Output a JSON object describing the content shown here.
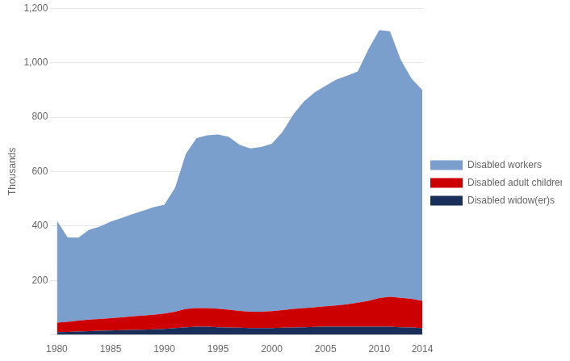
{
  "chart_data": {
    "type": "area",
    "stacked": true,
    "ylabel": "Thousands",
    "x": [
      1980,
      1981,
      1982,
      1983,
      1984,
      1985,
      1986,
      1987,
      1988,
      1989,
      1990,
      1991,
      1992,
      1993,
      1994,
      1995,
      1996,
      1997,
      1998,
      1999,
      2000,
      2001,
      2002,
      2003,
      2004,
      2005,
      2006,
      2007,
      2008,
      2009,
      2010,
      2011,
      2012,
      2013,
      2014
    ],
    "series": [
      {
        "name": "Disabled widow(er)s",
        "color": "#1a2e5a",
        "values": [
          10,
          11,
          12,
          14,
          15,
          16,
          17,
          18,
          19,
          20,
          22,
          25,
          28,
          30,
          30,
          28,
          27,
          26,
          25,
          25,
          25,
          26,
          27,
          28,
          29,
          30,
          30,
          30,
          30,
          30,
          30,
          30,
          28,
          27,
          25
        ]
      },
      {
        "name": "Disabled adult children",
        "color": "#cc0000",
        "values": [
          35,
          37,
          40,
          42,
          43,
          45,
          47,
          50,
          52,
          54,
          56,
          60,
          67,
          68,
          68,
          68,
          65,
          62,
          60,
          60,
          62,
          65,
          68,
          70,
          72,
          75,
          78,
          82,
          88,
          95,
          105,
          110,
          108,
          105,
          100
        ]
      },
      {
        "name": "Disabled workers",
        "color": "#7b9fcd",
        "values": [
          375,
          310,
          305,
          330,
          340,
          355,
          365,
          375,
          385,
          395,
          400,
          455,
          570,
          625,
          635,
          640,
          635,
          610,
          600,
          605,
          615,
          655,
          715,
          760,
          790,
          810,
          830,
          840,
          850,
          925,
          985,
          975,
          875,
          810,
          775
        ]
      }
    ],
    "xlim": [
      1980,
      2014
    ],
    "xticks": [
      1980,
      1985,
      1990,
      1995,
      2000,
      2005,
      2010,
      2014
    ],
    "ylim": [
      0,
      1200
    ],
    "yticks": [
      {
        "value": 0,
        "label": ""
      },
      200,
      400,
      600,
      800,
      {
        "value": 1000,
        "label": "1,000"
      },
      {
        "value": 1200,
        "label": "1,200"
      }
    ],
    "grid": true,
    "legend": "right"
  }
}
